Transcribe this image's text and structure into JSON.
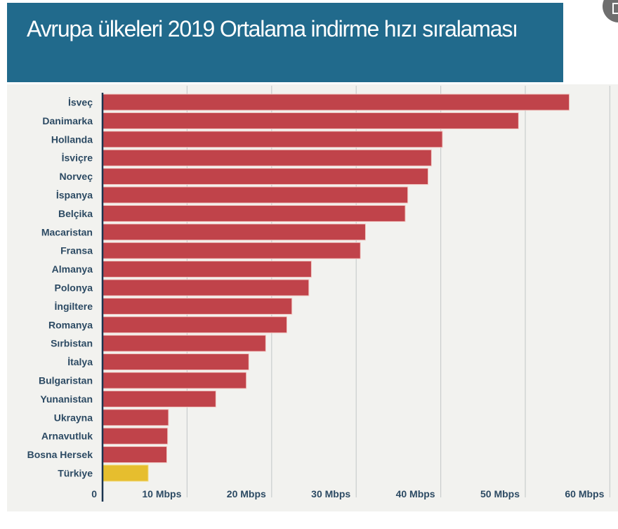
{
  "header": {
    "title": "Avrupa ülkeleri 2019 Ortalama indirme hızı sıralaması"
  },
  "corner_button": {
    "icon": "document-icon"
  },
  "colors": {
    "header_bg": "#216a8c",
    "panel_bg": "#f2f2ef",
    "bar": "#c0434a",
    "highlight_bar": "#e6be2e",
    "axis": "#1b3550",
    "grid": "#c9cdcd",
    "label": "#2c4a63"
  },
  "chart_data": {
    "type": "bar",
    "orientation": "horizontal",
    "title": "Avrupa ülkeleri 2019 Ortalama indirme hızı sıralaması",
    "xlabel": "",
    "ylabel": "",
    "xlim": [
      0,
      60
    ],
    "grid": true,
    "unit": "Mbps",
    "x_ticks": [
      {
        "value": 0,
        "label": "0"
      },
      {
        "value": 10,
        "label": "10 Mbps"
      },
      {
        "value": 20,
        "label": "20 Mbps"
      },
      {
        "value": 30,
        "label": "30 Mbps"
      },
      {
        "value": 40,
        "label": "40 Mbps"
      },
      {
        "value": 50,
        "label": "50 Mbps"
      },
      {
        "value": 60,
        "label": "60 Mbps"
      }
    ],
    "categories": [
      "İsveç",
      "Danimarka",
      "Hollanda",
      "İsviçre",
      "Norveç",
      "İspanya",
      "Belçika",
      "Macaristan",
      "Fransa",
      "Almanya",
      "Polonya",
      "İngiltere",
      "Romanya",
      "Sırbistan",
      "İtalya",
      "Bulgaristan",
      "Yunanistan",
      "Ukrayna",
      "Arnavutluk",
      "Bosna Hersek",
      "Türkiye"
    ],
    "values": [
      55.2,
      49.2,
      40.2,
      38.9,
      38.5,
      36.1,
      35.8,
      31.1,
      30.5,
      24.7,
      24.4,
      22.4,
      21.8,
      19.3,
      17.3,
      17.0,
      13.4,
      7.8,
      7.7,
      7.6,
      5.4
    ],
    "highlight": "Türkiye"
  }
}
